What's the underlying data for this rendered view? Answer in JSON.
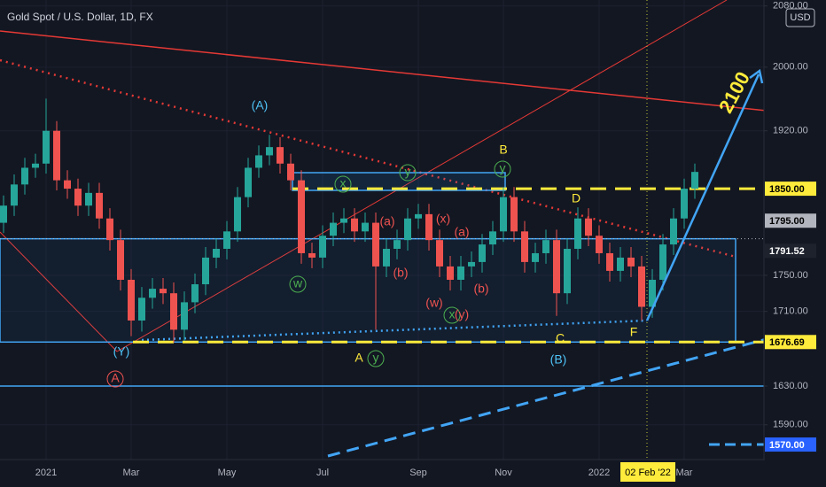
{
  "chart_data": {
    "type": "candlestick",
    "title": "Gold Spot / U.S. Dollar, 1D, FX",
    "currency": "USD",
    "log_scale": true,
    "ylim": [
      1558.5,
      2088
    ],
    "yticks": [
      {
        "value": 2080,
        "label": "2080.00"
      },
      {
        "value": 2000,
        "label": "2000.00"
      },
      {
        "value": 1920,
        "label": "1920.00"
      },
      {
        "value": 1750,
        "label": "1750.00"
      },
      {
        "value": 1710,
        "label": "1710.00"
      },
      {
        "value": 1630,
        "label": "1630.00"
      },
      {
        "value": 1590,
        "label": "1590.00"
      }
    ],
    "up_color": "#26a69a",
    "down_color": "#ef5350",
    "categories": [
      null,
      null,
      null,
      null,
      "2021",
      null,
      null,
      null,
      null,
      null,
      null,
      null,
      "Mar",
      null,
      null,
      null,
      null,
      null,
      null,
      null,
      null,
      "May",
      null,
      null,
      null,
      null,
      null,
      null,
      null,
      null,
      "Jul",
      null,
      null,
      null,
      null,
      null,
      null,
      null,
      null,
      "Sep",
      null,
      null,
      null,
      null,
      null,
      null,
      null,
      "Nov",
      null,
      null,
      null,
      null,
      null,
      null,
      null,
      null,
      "2022",
      null,
      null,
      null,
      null,
      null,
      null,
      null,
      "Mar",
      null
    ],
    "open": [
      1810,
      1830,
      1855,
      1875,
      1880,
      1920,
      1860,
      1850,
      1830,
      1845,
      1815,
      1790,
      1745,
      1700,
      1725,
      1735,
      1730,
      1690,
      1720,
      1740,
      1770,
      1780,
      1800,
      1840,
      1875,
      1890,
      1900,
      1880,
      1860,
      1775,
      1770,
      1795,
      1810,
      1815,
      1800,
      1810,
      1760,
      1780,
      1790,
      1815,
      1820,
      1790,
      1760,
      1745,
      1760,
      1765,
      1785,
      1800,
      1840,
      1800,
      1765,
      1775,
      1790,
      1730,
      1780,
      1815,
      1795,
      1775,
      1755,
      1770,
      1760,
      1715,
      1745,
      1785,
      1815,
      1850
    ],
    "high": [
      1842,
      1867,
      1887,
      1892,
      1960,
      1932,
      1872,
      1862,
      1857,
      1857,
      1827,
      1802,
      1757,
      1737,
      1747,
      1747,
      1742,
      1732,
      1752,
      1782,
      1792,
      1812,
      1852,
      1887,
      1902,
      1915,
      1912,
      1892,
      1872,
      1787,
      1807,
      1822,
      1827,
      1827,
      1822,
      1822,
      1792,
      1802,
      1827,
      1832,
      1832,
      1802,
      1772,
      1772,
      1777,
      1797,
      1812,
      1852,
      1852,
      1812,
      1787,
      1802,
      1802,
      1792,
      1828,
      1827,
      1807,
      1787,
      1782,
      1782,
      1772,
      1757,
      1797,
      1827,
      1862,
      1880
    ],
    "low": [
      1798,
      1818,
      1843,
      1863,
      1868,
      1848,
      1838,
      1818,
      1818,
      1803,
      1778,
      1733,
      1683,
      1688,
      1713,
      1718,
      1676,
      1678,
      1708,
      1728,
      1758,
      1768,
      1788,
      1828,
      1863,
      1878,
      1868,
      1848,
      1763,
      1758,
      1758,
      1783,
      1798,
      1788,
      1788,
      1690,
      1748,
      1768,
      1778,
      1803,
      1778,
      1748,
      1733,
      1733,
      1748,
      1753,
      1773,
      1788,
      1788,
      1753,
      1753,
      1763,
      1705,
      1718,
      1768,
      1783,
      1763,
      1743,
      1743,
      1748,
      1700,
      1703,
      1733,
      1773,
      1803,
      1838
    ],
    "close": [
      1830,
      1855,
      1875,
      1880,
      1920,
      1860,
      1850,
      1830,
      1845,
      1815,
      1790,
      1745,
      1700,
      1725,
      1735,
      1730,
      1690,
      1720,
      1740,
      1770,
      1780,
      1800,
      1840,
      1875,
      1890,
      1900,
      1880,
      1860,
      1775,
      1770,
      1795,
      1810,
      1815,
      1800,
      1810,
      1760,
      1780,
      1790,
      1815,
      1820,
      1790,
      1760,
      1745,
      1760,
      1765,
      1785,
      1800,
      1840,
      1800,
      1765,
      1775,
      1790,
      1730,
      1780,
      1815,
      1795,
      1775,
      1755,
      1770,
      1760,
      1715,
      1745,
      1785,
      1815,
      1850,
      1870
    ],
    "price_labels": [
      {
        "value": 1850,
        "label": "1850.00",
        "color": "#ffeb3b",
        "text_color": "#000000"
      },
      {
        "value": 1795,
        "label": "1795.00",
        "color": "#b2b5be",
        "text_color": "#000000"
      },
      {
        "value": 1791.52,
        "label": "1791.52",
        "color": "#1e222d",
        "text_color": "#ffffff"
      },
      {
        "value": 1676.69,
        "label": "1676.69",
        "color": "#ffeb3b",
        "text_color": "#000000"
      },
      {
        "value": 1570,
        "label": "1570.00",
        "color": "#2962ff",
        "text_color": "#ffffff"
      }
    ],
    "crosshair_label": "02 Feb '22",
    "annotations": [
      {
        "text": "(A)",
        "color": "#4fc3f7"
      },
      {
        "text": "(Y)",
        "color": "#4fc3f7"
      },
      {
        "text": "A",
        "color": "#ef5350"
      },
      {
        "text": "B",
        "color": "#ffeb3b"
      },
      {
        "text": "D",
        "color": "#ffeb3b"
      },
      {
        "text": "C",
        "color": "#ffeb3b"
      },
      {
        "text": "(B)",
        "color": "#4fc3f7"
      },
      {
        "text": "F",
        "color": "#ffeb3b"
      },
      {
        "text": "A",
        "color": "#ffeb3b"
      },
      {
        "text": "y",
        "color": "#4caf50"
      },
      {
        "text": "w",
        "color": "#4caf50"
      },
      {
        "text": "x",
        "color": "#4caf50"
      },
      {
        "text": "y",
        "color": "#4caf50"
      },
      {
        "text": "y",
        "color": "#4caf50"
      },
      {
        "text": "(a)",
        "color": "#ef5350"
      },
      {
        "text": "(b)",
        "color": "#ef5350"
      },
      {
        "text": "(x)",
        "color": "#ef5350"
      },
      {
        "text": "(a)",
        "color": "#ef5350"
      },
      {
        "text": "(b)",
        "color": "#ef5350"
      },
      {
        "text": "(w)",
        "color": "#ef5350"
      },
      {
        "text": "x",
        "color": "#4caf50"
      },
      {
        "text": "(y)",
        "color": "#ef5350"
      },
      {
        "text": "2100",
        "color": "#ffeb3b"
      }
    ]
  }
}
